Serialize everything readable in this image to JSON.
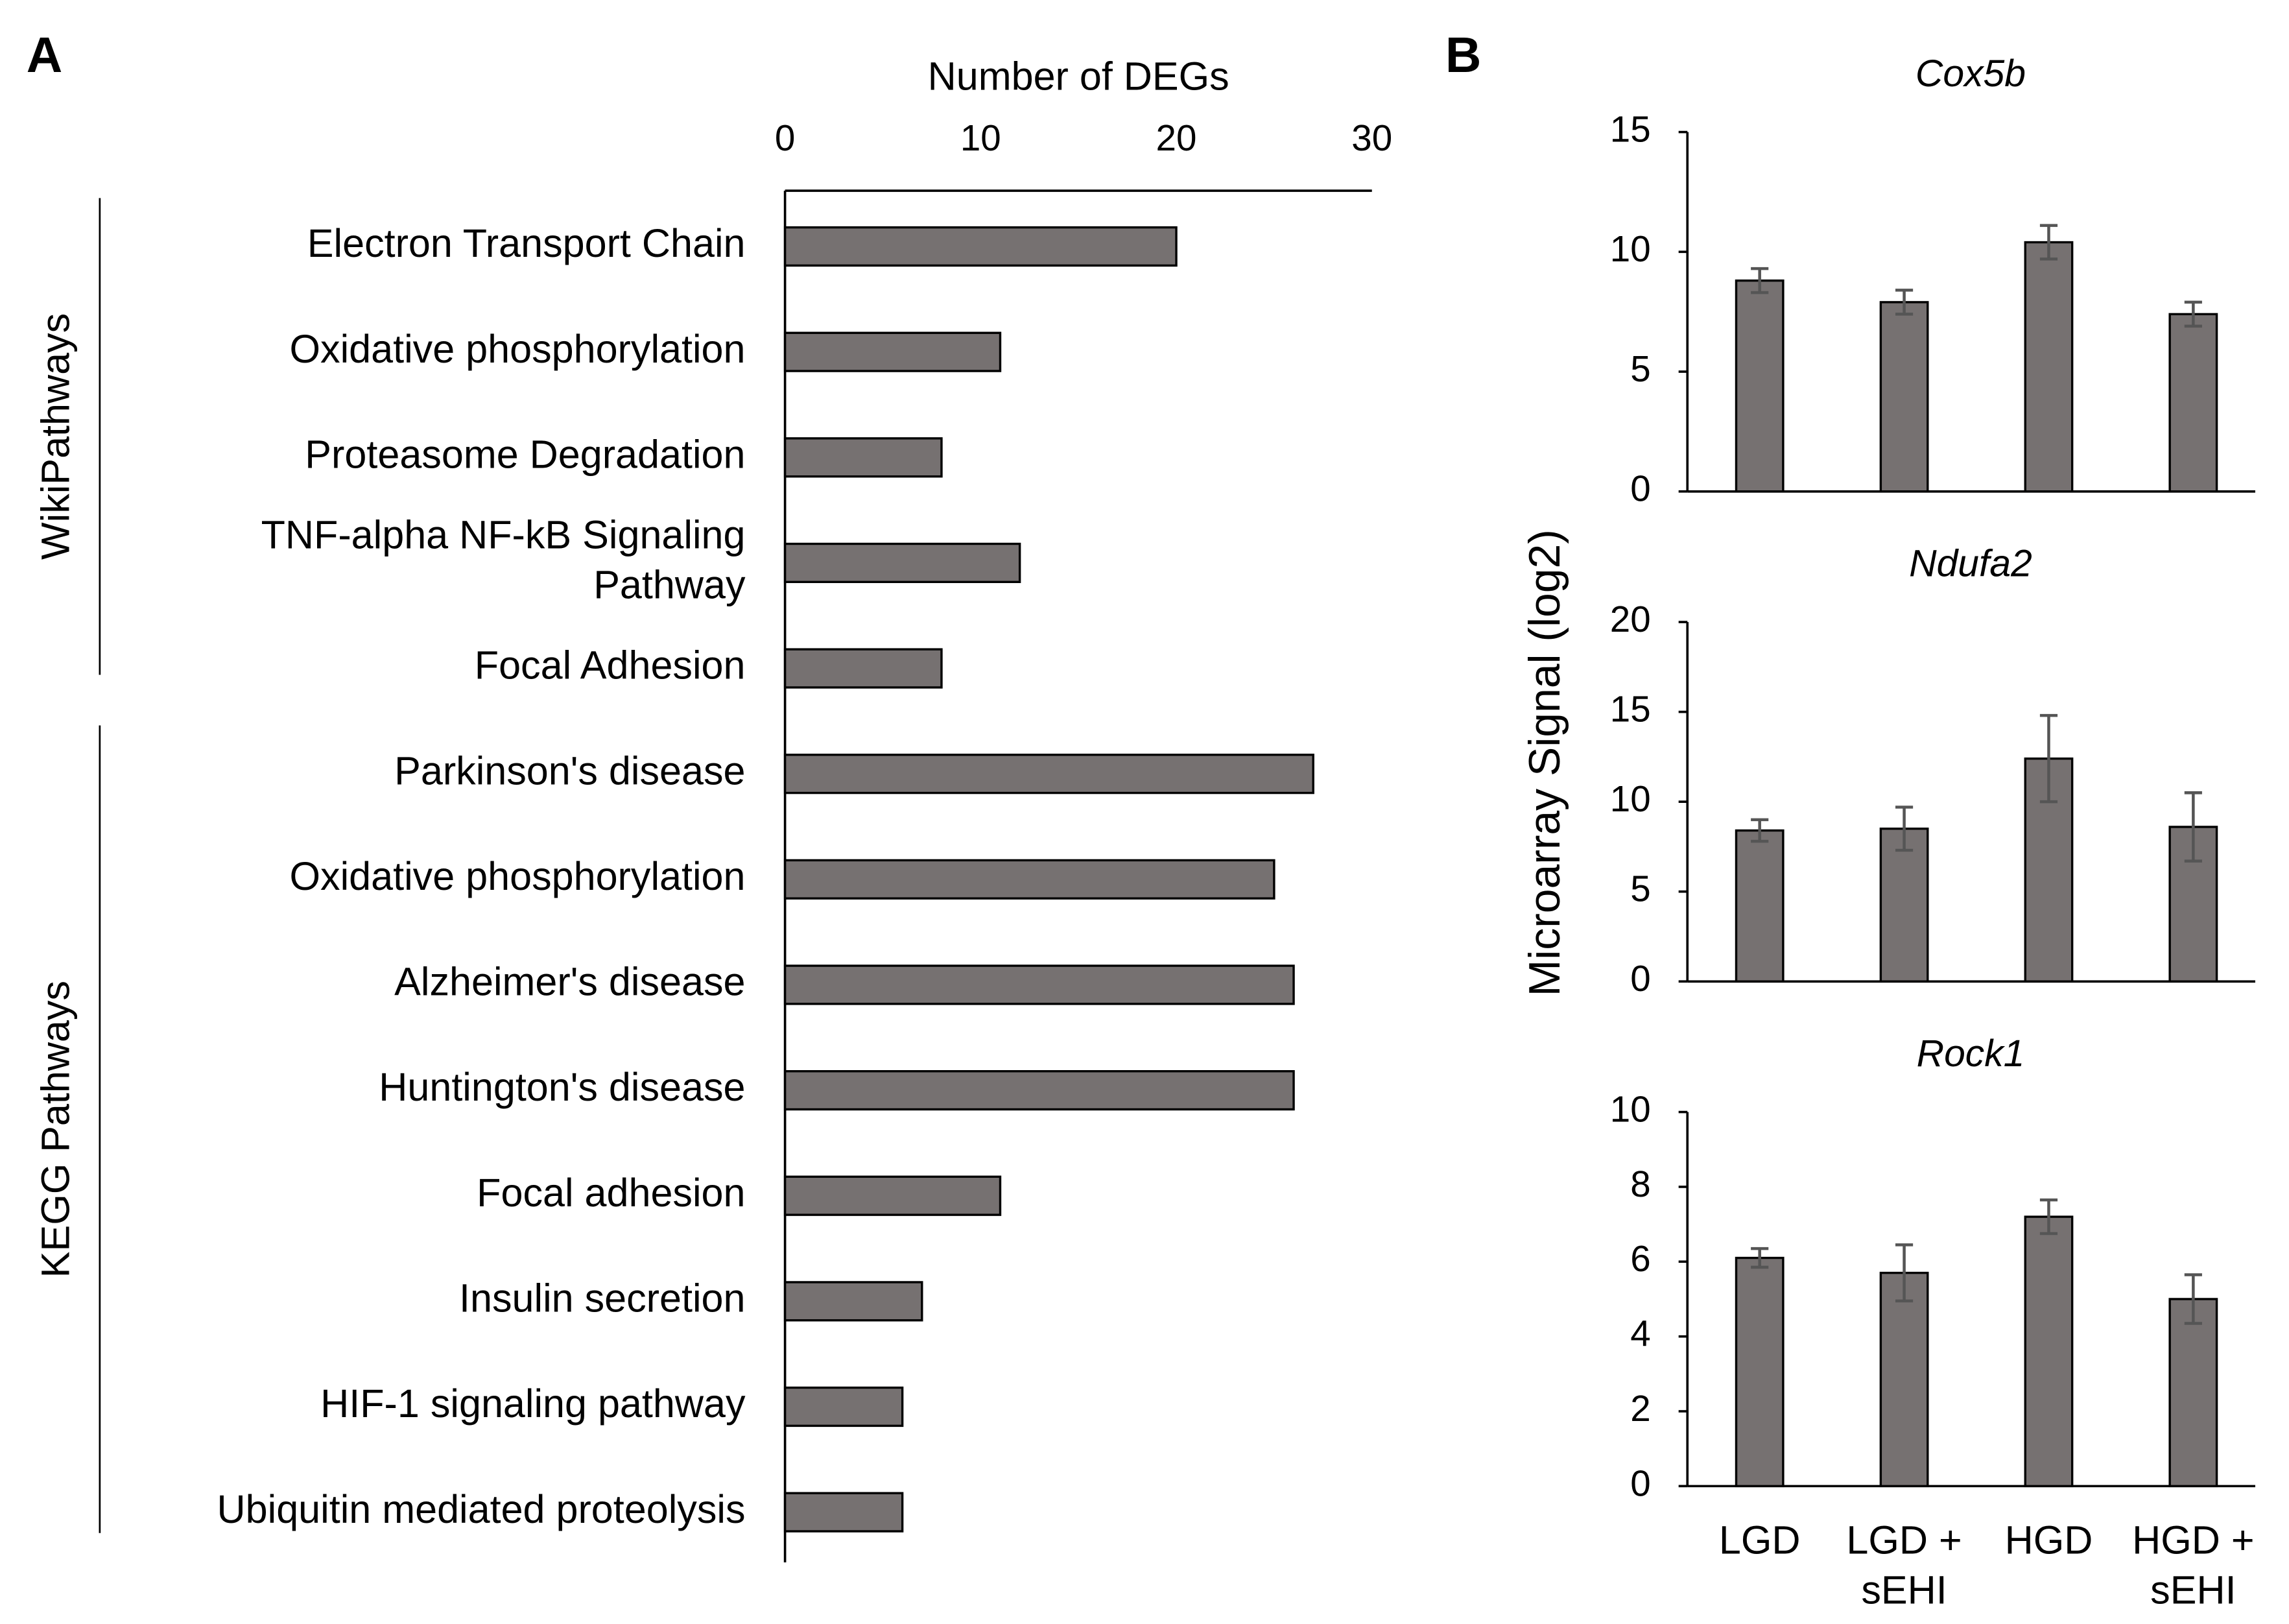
{
  "panel_labels": [
    "A",
    "B"
  ],
  "shared_ylabel": "Microarray Signal (log2)",
  "chart_data": [
    {
      "type": "hbar",
      "xlabel": "Number of DEGs",
      "color": "#767171",
      "categories": [
        "Electron Transport Chain",
        "Oxidative phosphorylation",
        "Proteasome Degradation",
        "TNF-alpha NF-kB Signaling Pathway",
        "Focal Adhesion",
        "Parkinson's disease",
        "Oxidative phosphorylation",
        "Alzheimer's disease",
        "Huntington's disease",
        "Focal adhesion",
        "Insulin secretion",
        "HIF-1 signaling pathway",
        "Ubiquitin mediated proteolysis"
      ],
      "values": [
        20,
        11,
        8,
        12,
        8,
        27,
        25,
        26,
        26,
        11,
        7,
        6,
        6
      ],
      "groups": [
        {
          "name": "WikiPathways",
          "count": 5
        },
        {
          "name": "KEGG Pathways",
          "count": 8
        }
      ],
      "xlim": [
        0,
        30
      ],
      "xticks": [
        0,
        10,
        20,
        30
      ]
    },
    {
      "type": "bar",
      "title": "Cox5b",
      "color": "#767171",
      "categories": [
        "LGD",
        "LGD + sEHI",
        "HGD",
        "HGD + sEHI"
      ],
      "values": [
        8.8,
        7.9,
        10.4,
        7.4
      ],
      "errors": [
        0.5,
        0.5,
        0.7,
        0.5
      ],
      "ylim": [
        0,
        15
      ],
      "yticks": [
        0,
        5,
        10,
        15
      ]
    },
    {
      "type": "bar",
      "title": "Ndufa2",
      "color": "#767171",
      "categories": [
        "LGD",
        "LGD + sEHI",
        "HGD",
        "HGD + sEHI"
      ],
      "values": [
        8.4,
        8.5,
        12.4,
        8.6
      ],
      "errors": [
        0.6,
        1.2,
        2.4,
        1.9
      ],
      "ylim": [
        0,
        20
      ],
      "yticks": [
        0,
        5,
        10,
        15,
        20
      ]
    },
    {
      "type": "bar",
      "title": "Rock1",
      "color": "#767171",
      "categories": [
        "LGD",
        "LGD + sEHI",
        "HGD",
        "HGD + sEHI"
      ],
      "values": [
        6.1,
        5.7,
        7.2,
        5.0
      ],
      "errors": [
        0.25,
        0.75,
        0.45,
        0.65
      ],
      "ylim": [
        0,
        10
      ],
      "yticks": [
        0,
        2,
        4,
        6,
        8,
        10
      ]
    }
  ]
}
